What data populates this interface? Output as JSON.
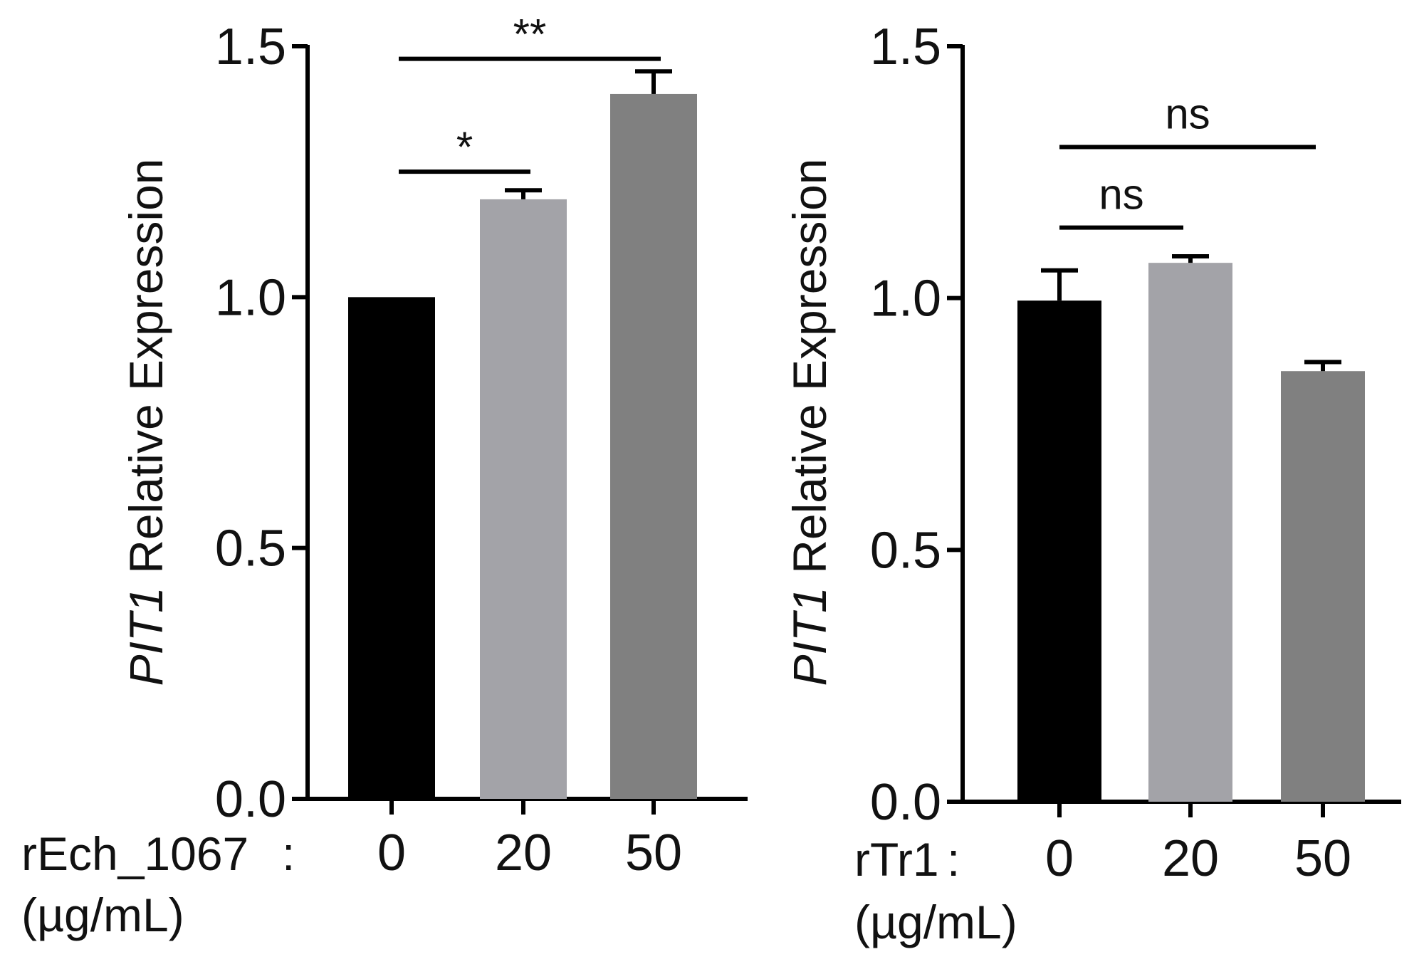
{
  "chart_data": [
    {
      "type": "bar",
      "gene": "PIT1",
      "ylabel_suffix": "Relative Expression",
      "ylim": [
        0,
        1.5
      ],
      "yticks": [
        "0.0",
        "0.5",
        "1.0",
        "1.5"
      ],
      "yticks_values": [
        0.0,
        0.5,
        1.0,
        1.5
      ],
      "treatment_label": "rEch_1067",
      "colon": ":",
      "unit_label": "(µg/mL)",
      "categories": [
        "0",
        "20",
        "50"
      ],
      "values": [
        1.0,
        1.195,
        1.405
      ],
      "errors": [
        0.0,
        0.018,
        0.045
      ],
      "colors": [
        "#000000",
        "#a3a3a8",
        "#808080"
      ],
      "significance": [
        {
          "from": 0,
          "to": 1,
          "label": "*",
          "y": 1.25
        },
        {
          "from": 0,
          "to": 2,
          "label": "**",
          "y": 1.475
        }
      ]
    },
    {
      "type": "bar",
      "gene": "PIT1",
      "ylabel_suffix": "Relative Expression",
      "ylim": [
        0,
        1.5
      ],
      "yticks": [
        "0.0",
        "0.5",
        "1.0",
        "1.5"
      ],
      "yticks_values": [
        0.0,
        0.5,
        1.0,
        1.5
      ],
      "treatment_label": "rTr1",
      "colon": ":",
      "unit_label": "(µg/mL)",
      "categories": [
        "0",
        "20",
        "50"
      ],
      "values": [
        0.995,
        1.07,
        0.855
      ],
      "errors": [
        0.06,
        0.013,
        0.018
      ],
      "colors": [
        "#000000",
        "#a3a3a8",
        "#808080"
      ],
      "significance": [
        {
          "from": 0,
          "to": 1,
          "label": "ns",
          "y": 1.14
        },
        {
          "from": 0,
          "to": 2,
          "label": "ns",
          "y": 1.3
        }
      ]
    }
  ]
}
